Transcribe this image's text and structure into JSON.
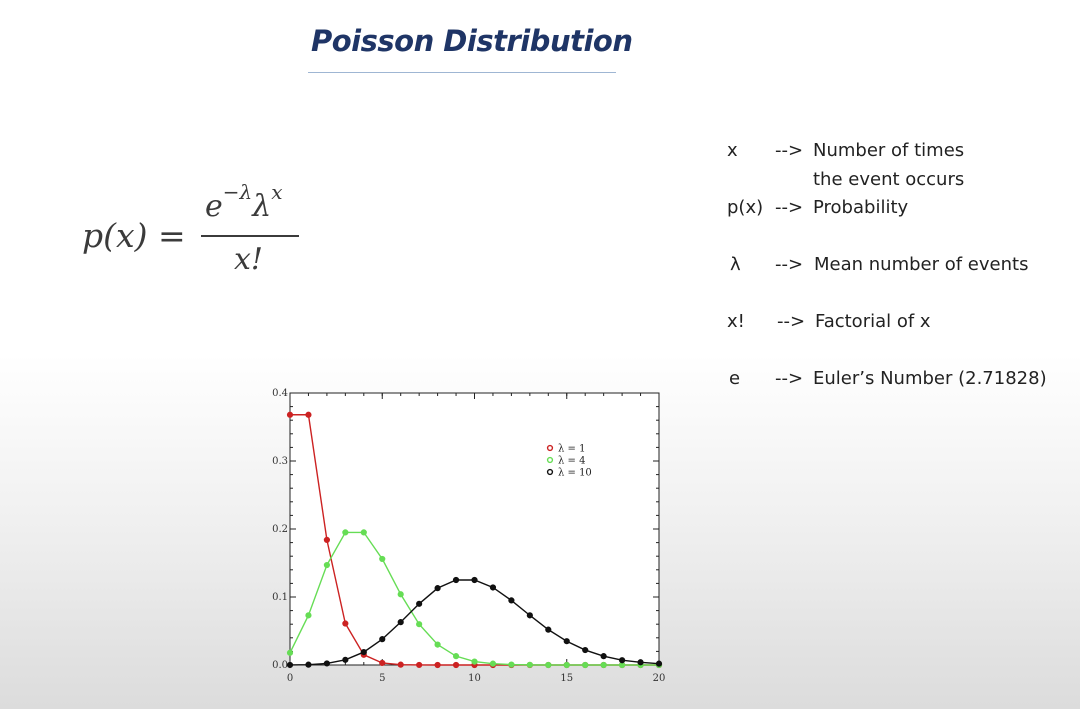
{
  "title": "Poisson Distribution",
  "formula": {
    "lhs": "p(x) =",
    "numerator_base": "e",
    "numerator_exp": "−λ",
    "numerator_lambda": "λ",
    "numerator_lambda_exp": "x",
    "denominator": "x!"
  },
  "definitions": [
    {
      "symbol": "x",
      "arrow": "-->",
      "desc": "Number of times",
      "desc2": "the event occurs"
    },
    {
      "symbol": "p(x)",
      "arrow": "-->",
      "desc": "Probability"
    },
    {
      "symbol": "λ",
      "arrow": "-->",
      "desc": "Mean number of events"
    },
    {
      "symbol": "x!",
      "arrow": "-->",
      "desc": "Factorial of x"
    },
    {
      "symbol": "e",
      "arrow": "-->",
      "desc": "Euler’s Number (2.71828)"
    }
  ],
  "chart_data": {
    "type": "line",
    "x": [
      0,
      1,
      2,
      3,
      4,
      5,
      6,
      7,
      8,
      9,
      10,
      11,
      12,
      13,
      14,
      15,
      16,
      17,
      18,
      19,
      20
    ],
    "xlim": [
      0,
      20
    ],
    "ylim": [
      0,
      0.4
    ],
    "xticks": [
      "0",
      "5",
      "10",
      "15",
      "20"
    ],
    "yticks": [
      "0.0",
      "0.1",
      "0.2",
      "0.3",
      "0.4"
    ],
    "legend_position": "top-right",
    "series": [
      {
        "name": "λ = 1",
        "color": "#cc2222",
        "values": [
          0.368,
          0.368,
          0.184,
          0.061,
          0.015,
          0.003,
          0.0005,
          0.0001,
          0,
          0,
          0,
          0,
          0,
          0,
          0,
          0,
          0,
          0,
          0,
          0,
          0
        ]
      },
      {
        "name": "λ = 4",
        "color": "#66dd55",
        "values": [
          0.018,
          0.073,
          0.147,
          0.195,
          0.195,
          0.156,
          0.104,
          0.06,
          0.03,
          0.013,
          0.005,
          0.002,
          0.0006,
          0.0002,
          0,
          0,
          0,
          0,
          0,
          0,
          0
        ]
      },
      {
        "name": "λ = 10",
        "color": "#111111",
        "values": [
          5e-05,
          0.0005,
          0.0023,
          0.0076,
          0.019,
          0.038,
          0.063,
          0.09,
          0.113,
          0.125,
          0.125,
          0.114,
          0.095,
          0.073,
          0.052,
          0.035,
          0.022,
          0.013,
          0.007,
          0.004,
          0.002
        ]
      }
    ]
  }
}
